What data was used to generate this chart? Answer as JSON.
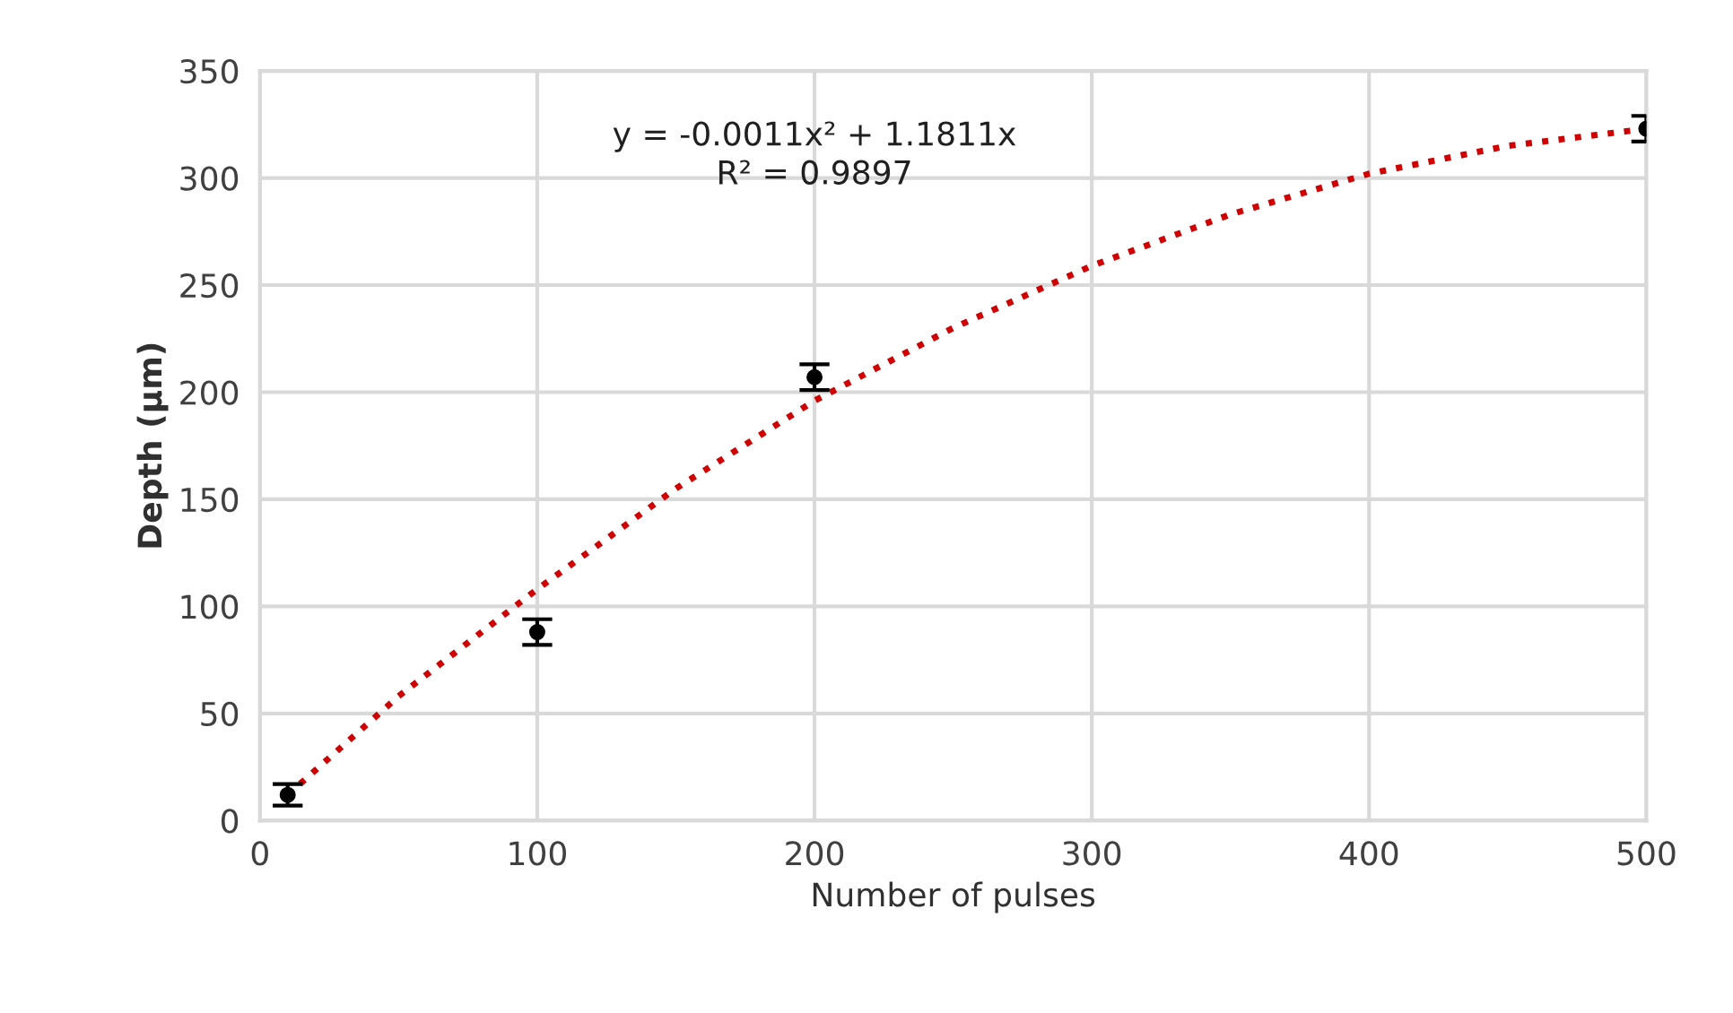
{
  "chart_data": {
    "type": "scatter",
    "xlabel": "Number of pulses",
    "ylabel": "Depth (µm)",
    "xlim": [
      0,
      500
    ],
    "ylim": [
      0,
      350
    ],
    "xticks": [
      0,
      100,
      200,
      300,
      400,
      500
    ],
    "yticks": [
      0,
      50,
      100,
      150,
      200,
      250,
      300,
      350
    ],
    "grid": true,
    "marker": "circle",
    "series": [
      {
        "color": "#000000",
        "x": [
          10,
          100,
          200,
          500
        ],
        "values": [
          12,
          88,
          207,
          323
        ],
        "errors": [
          5,
          6,
          6,
          6
        ]
      },
      {
        "type": "line",
        "color": "#d00000",
        "line_style": "dotted",
        "marker": "none",
        "x": [
          10,
          50,
          100,
          150,
          200,
          250,
          300,
          350,
          400,
          450,
          500
        ],
        "values": [
          12,
          58,
          108,
          155,
          196,
          230,
          259,
          283,
          302,
          315,
          323
        ]
      }
    ],
    "annotations": [
      "y = -0.0011x² + 1.1811x\nR² = 0.9897"
    ]
  }
}
